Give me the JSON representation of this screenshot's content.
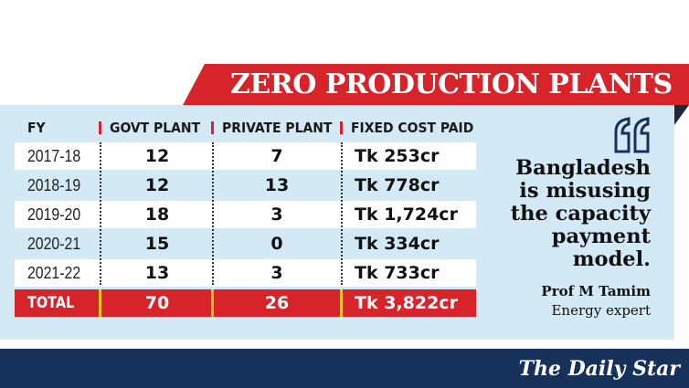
{
  "banner": {
    "title": "ZERO PRODUCTION PLANTS"
  },
  "table": {
    "headers": [
      "FY",
      "GOVT PLANT",
      "PRIVATE PLANT",
      "FIXED COST PAID"
    ],
    "rows": [
      {
        "fy": "2017-18",
        "govt": "12",
        "private": "7",
        "cost": "Tk 253cr"
      },
      {
        "fy": "2018-19",
        "govt": "12",
        "private": "13",
        "cost": "Tk 778cr"
      },
      {
        "fy": "2019-20",
        "govt": "18",
        "private": "3",
        "cost": "Tk 1,724cr"
      },
      {
        "fy": "2020-21",
        "govt": "15",
        "private": "0",
        "cost": "Tk 334cr"
      },
      {
        "fy": "2021-22",
        "govt": "13",
        "private": "3",
        "cost": "Tk 733cr"
      }
    ],
    "total": {
      "label": "TOTAL",
      "govt": "70",
      "private": "26",
      "cost": "Tk 3,822cr"
    }
  },
  "quote": {
    "lines": [
      "Bangladesh",
      "is misusing",
      "the capacity",
      "payment",
      "model."
    ],
    "author": "Prof M Tamim",
    "role": "Energy expert"
  },
  "footer": {
    "logo": "The Daily Star"
  },
  "colors": {
    "accent_red": "#d7232a",
    "panel_blue": "#d3e9f6",
    "footer_navy": "#16325a",
    "separator_yellow": "#f2c418"
  }
}
